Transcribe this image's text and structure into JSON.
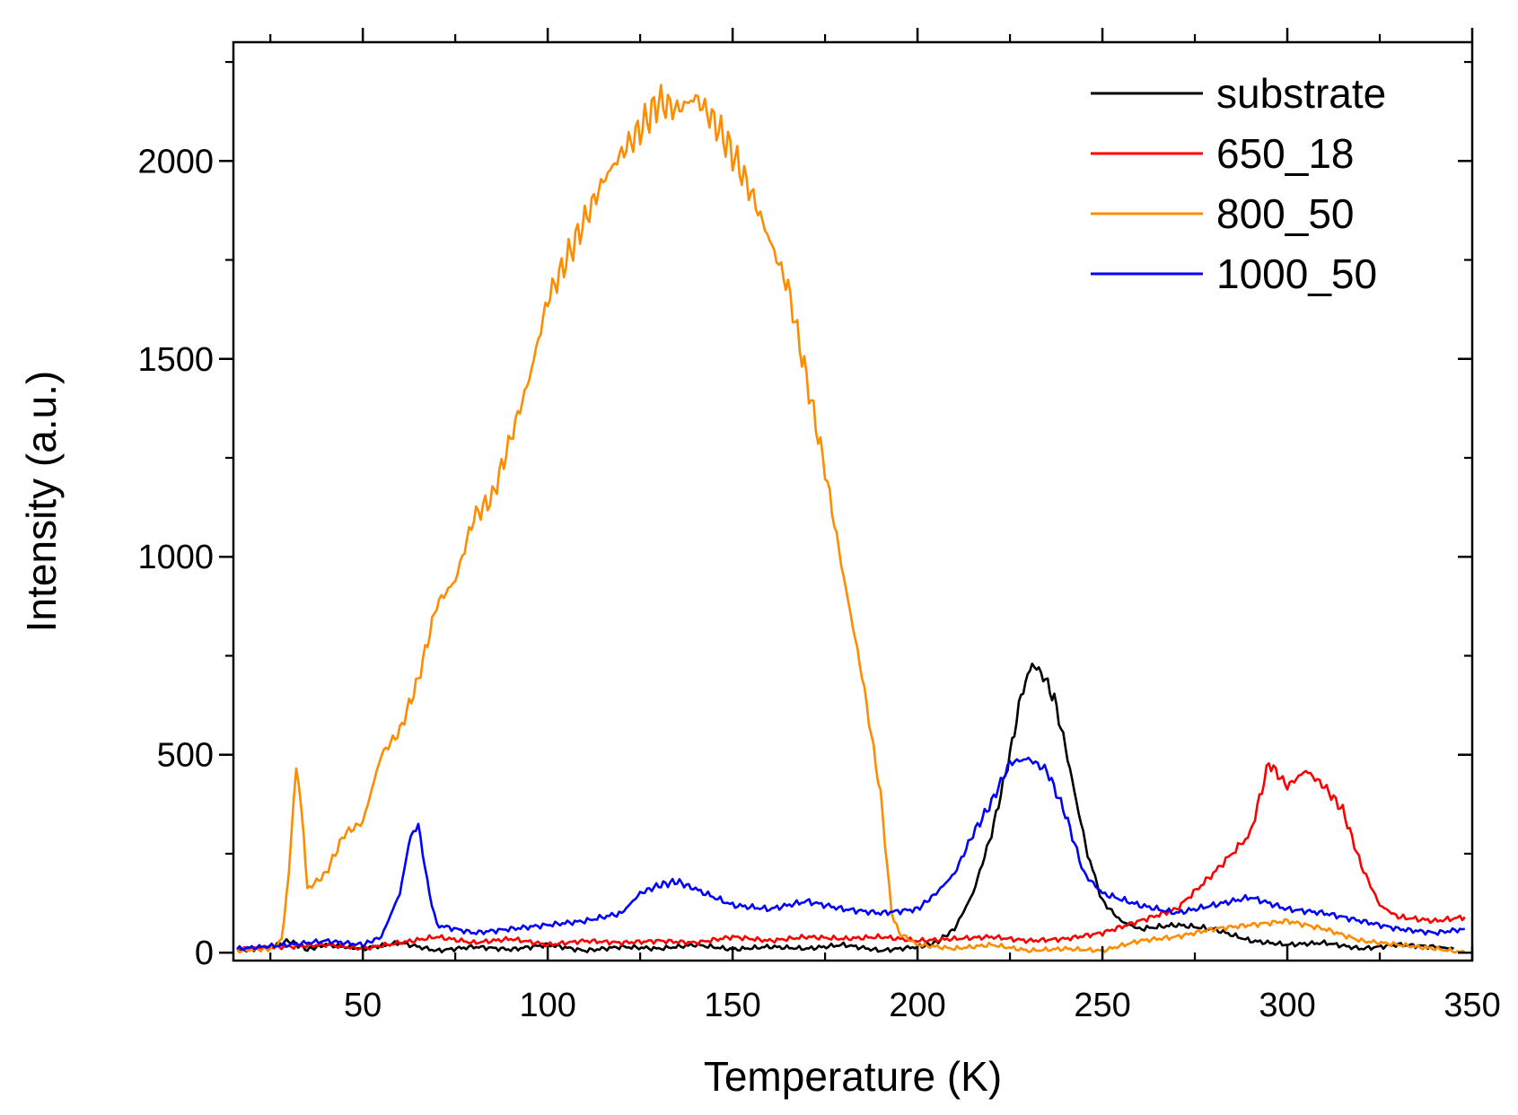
{
  "chart_data": {
    "type": "line",
    "title": "",
    "xlabel": "Temperature (K)",
    "ylabel": "Intensity (a.u.)",
    "xlim": [
      15,
      350
    ],
    "ylim": [
      -20,
      2300
    ],
    "x_ticks": [
      50,
      100,
      150,
      200,
      250,
      300,
      350
    ],
    "x_tick_labels": [
      "50",
      "100",
      "150",
      "200",
      "250",
      "300",
      "350"
    ],
    "y_ticks": [
      0,
      500,
      1000,
      1500,
      2000
    ],
    "y_tick_labels": [
      "0",
      "500",
      "1000",
      "1500",
      "2000"
    ],
    "x_minor_step": 25,
    "y_minor_step": 250,
    "grid": false,
    "legend_position": "top-right",
    "series": [
      {
        "name": "substrate",
        "color": "#000000",
        "points": [
          [
            16,
            5
          ],
          [
            25,
            15
          ],
          [
            30,
            30
          ],
          [
            35,
            8
          ],
          [
            40,
            20
          ],
          [
            50,
            10
          ],
          [
            60,
            25
          ],
          [
            70,
            5
          ],
          [
            80,
            15
          ],
          [
            90,
            8
          ],
          [
            100,
            20
          ],
          [
            110,
            5
          ],
          [
            120,
            15
          ],
          [
            130,
            10
          ],
          [
            140,
            20
          ],
          [
            150,
            8
          ],
          [
            160,
            15
          ],
          [
            170,
            10
          ],
          [
            180,
            20
          ],
          [
            190,
            5
          ],
          [
            200,
            15
          ],
          [
            205,
            25
          ],
          [
            210,
            60
          ],
          [
            215,
            150
          ],
          [
            220,
            300
          ],
          [
            225,
            500
          ],
          [
            228,
            650
          ],
          [
            231,
            730
          ],
          [
            234,
            700
          ],
          [
            237,
            640
          ],
          [
            240,
            520
          ],
          [
            243,
            380
          ],
          [
            246,
            250
          ],
          [
            250,
            130
          ],
          [
            255,
            80
          ],
          [
            260,
            60
          ],
          [
            270,
            70
          ],
          [
            280,
            60
          ],
          [
            290,
            30
          ],
          [
            300,
            20
          ],
          [
            310,
            25
          ],
          [
            320,
            10
          ],
          [
            330,
            20
          ],
          [
            340,
            15
          ],
          [
            345,
            10
          ]
        ]
      },
      {
        "name": "650_18",
        "color": "#ff0000",
        "points": [
          [
            16,
            10
          ],
          [
            30,
            15
          ],
          [
            40,
            20
          ],
          [
            50,
            10
          ],
          [
            60,
            25
          ],
          [
            70,
            40
          ],
          [
            80,
            25
          ],
          [
            90,
            35
          ],
          [
            100,
            20
          ],
          [
            110,
            30
          ],
          [
            120,
            25
          ],
          [
            130,
            30
          ],
          [
            140,
            25
          ],
          [
            150,
            40
          ],
          [
            160,
            30
          ],
          [
            170,
            40
          ],
          [
            180,
            35
          ],
          [
            190,
            40
          ],
          [
            200,
            30
          ],
          [
            210,
            35
          ],
          [
            220,
            40
          ],
          [
            230,
            30
          ],
          [
            240,
            35
          ],
          [
            250,
            50
          ],
          [
            260,
            80
          ],
          [
            270,
            110
          ],
          [
            280,
            200
          ],
          [
            290,
            300
          ],
          [
            295,
            480
          ],
          [
            300,
            420
          ],
          [
            305,
            460
          ],
          [
            310,
            420
          ],
          [
            315,
            360
          ],
          [
            320,
            220
          ],
          [
            325,
            120
          ],
          [
            330,
            90
          ],
          [
            340,
            80
          ],
          [
            348,
            90
          ]
        ]
      },
      {
        "name": "800_50",
        "color": "#ff8c00",
        "points": [
          [
            16,
            5
          ],
          [
            25,
            10
          ],
          [
            28,
            30
          ],
          [
            30,
            200
          ],
          [
            32,
            480
          ],
          [
            34,
            300
          ],
          [
            35,
            160
          ],
          [
            40,
            200
          ],
          [
            45,
            300
          ],
          [
            50,
            330
          ],
          [
            55,
            500
          ],
          [
            60,
            560
          ],
          [
            65,
            690
          ],
          [
            70,
            880
          ],
          [
            75,
            940
          ],
          [
            80,
            1100
          ],
          [
            85,
            1150
          ],
          [
            90,
            1300
          ],
          [
            95,
            1450
          ],
          [
            100,
            1650
          ],
          [
            105,
            1750
          ],
          [
            110,
            1850
          ],
          [
            115,
            1950
          ],
          [
            120,
            2020
          ],
          [
            125,
            2080
          ],
          [
            130,
            2150
          ],
          [
            135,
            2130
          ],
          [
            140,
            2160
          ],
          [
            145,
            2100
          ],
          [
            150,
            2020
          ],
          [
            155,
            1920
          ],
          [
            160,
            1800
          ],
          [
            165,
            1680
          ],
          [
            170,
            1450
          ],
          [
            175,
            1220
          ],
          [
            180,
            950
          ],
          [
            185,
            700
          ],
          [
            190,
            400
          ],
          [
            193,
            100
          ],
          [
            195,
            50
          ],
          [
            200,
            20
          ],
          [
            210,
            10
          ],
          [
            220,
            20
          ],
          [
            230,
            5
          ],
          [
            240,
            10
          ],
          [
            250,
            5
          ],
          [
            260,
            30
          ],
          [
            270,
            40
          ],
          [
            280,
            60
          ],
          [
            290,
            70
          ],
          [
            300,
            80
          ],
          [
            310,
            60
          ],
          [
            320,
            30
          ],
          [
            330,
            20
          ],
          [
            340,
            10
          ],
          [
            348,
            0
          ]
        ]
      },
      {
        "name": "1000_50",
        "color": "#0000ff",
        "points": [
          [
            16,
            10
          ],
          [
            30,
            20
          ],
          [
            40,
            30
          ],
          [
            50,
            20
          ],
          [
            55,
            40
          ],
          [
            60,
            150
          ],
          [
            63,
            300
          ],
          [
            65,
            320
          ],
          [
            68,
            150
          ],
          [
            70,
            70
          ],
          [
            80,
            50
          ],
          [
            90,
            60
          ],
          [
            100,
            70
          ],
          [
            110,
            80
          ],
          [
            120,
            100
          ],
          [
            125,
            150
          ],
          [
            130,
            170
          ],
          [
            135,
            180
          ],
          [
            140,
            160
          ],
          [
            150,
            120
          ],
          [
            160,
            110
          ],
          [
            170,
            130
          ],
          [
            180,
            110
          ],
          [
            190,
            100
          ],
          [
            200,
            110
          ],
          [
            205,
            150
          ],
          [
            210,
            200
          ],
          [
            215,
            300
          ],
          [
            220,
            380
          ],
          [
            225,
            480
          ],
          [
            230,
            490
          ],
          [
            235,
            460
          ],
          [
            240,
            350
          ],
          [
            245,
            200
          ],
          [
            250,
            150
          ],
          [
            260,
            120
          ],
          [
            270,
            100
          ],
          [
            280,
            120
          ],
          [
            290,
            140
          ],
          [
            300,
            110
          ],
          [
            310,
            100
          ],
          [
            320,
            80
          ],
          [
            330,
            60
          ],
          [
            340,
            50
          ],
          [
            348,
            60
          ]
        ]
      }
    ]
  }
}
